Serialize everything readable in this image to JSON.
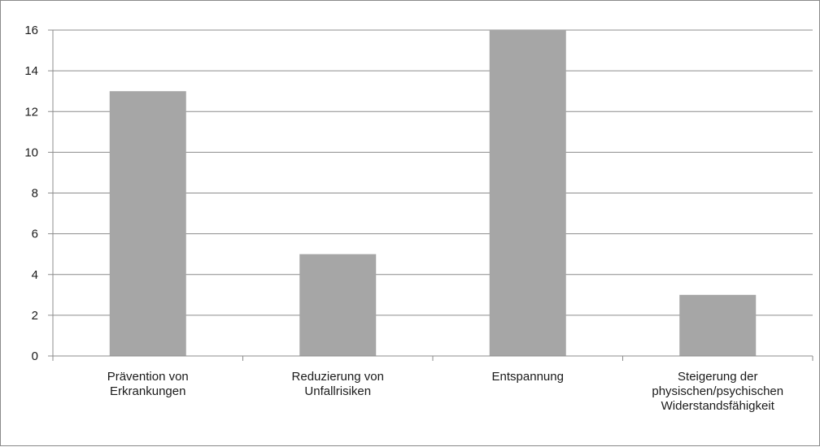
{
  "chart_data": {
    "type": "bar",
    "categories": [
      [
        "Prävention von",
        "Erkrankungen"
      ],
      [
        "Reduzierung von",
        "Unfallrisiken"
      ],
      [
        "Entspannung"
      ],
      [
        "Steigerung der",
        "physischen/psychischen",
        "Widerstandsfähigkeit"
      ]
    ],
    "values": [
      13,
      5,
      16,
      3
    ],
    "ylim": [
      0,
      16
    ],
    "yticks": [
      0,
      2,
      4,
      6,
      8,
      10,
      12,
      14,
      16
    ],
    "grid": true,
    "colors": {
      "bar": "#a6a6a6",
      "grid": "#8c8c8c",
      "axis": "#8c8c8c"
    }
  }
}
